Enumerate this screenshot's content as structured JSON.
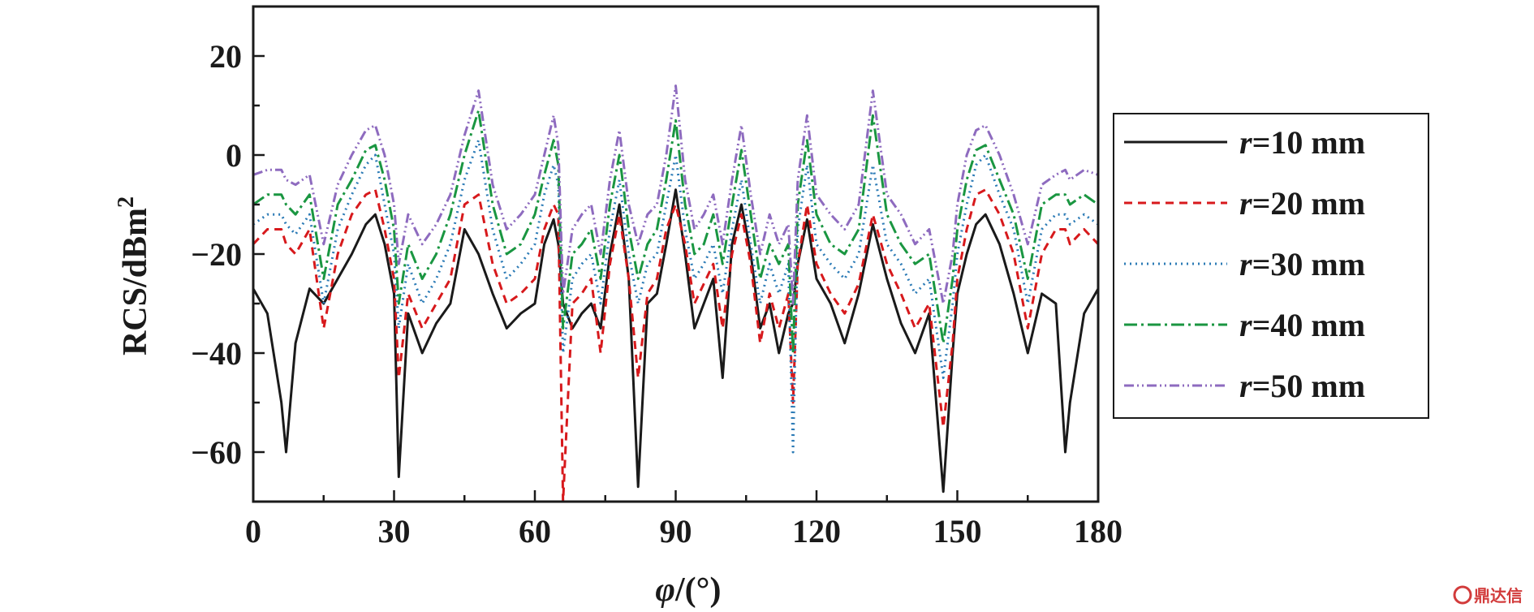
{
  "chart_data": {
    "type": "line",
    "xlabel_symbol": "φ",
    "xlabel_unit": "/(°)",
    "ylabel": "RCS/dBm",
    "ylabel_sup": "2",
    "xlim": [
      0,
      180
    ],
    "ylim": [
      -70,
      30
    ],
    "xticks": [
      0,
      30,
      60,
      90,
      120,
      150,
      180
    ],
    "yticks": [
      -60,
      -40,
      -20,
      0,
      20
    ],
    "grid": false,
    "legend_position": "right",
    "x": [
      0,
      3,
      6,
      7,
      9,
      12,
      15,
      18,
      21,
      24,
      26,
      28,
      30,
      31,
      33,
      36,
      39,
      42,
      45,
      48,
      51,
      54,
      57,
      60,
      62,
      64,
      65,
      66,
      68,
      70,
      72,
      74,
      76,
      78,
      80,
      82,
      84,
      86,
      88,
      90,
      92,
      94,
      96,
      98,
      100,
      102,
      104,
      106,
      108,
      110,
      112,
      114,
      115,
      116,
      118,
      120,
      123,
      126,
      129,
      132,
      135,
      138,
      141,
      144,
      147,
      149,
      150,
      152,
      154,
      156,
      159,
      162,
      165,
      168,
      171,
      173,
      174,
      177,
      180
    ],
    "series": [
      {
        "name": "r=10 mm",
        "color": "#1a1a1a",
        "dash": "solid",
        "values": [
          -27,
          -32,
          -50,
          -60,
          -38,
          -27,
          -30,
          -25,
          -20,
          -14,
          -12,
          -18,
          -28,
          -65,
          -32,
          -40,
          -34,
          -30,
          -15,
          -20,
          -28,
          -35,
          -32,
          -30,
          -18,
          -13,
          -18,
          -30,
          -35,
          -32,
          -30,
          -35,
          -20,
          -10,
          -25,
          -67,
          -30,
          -28,
          -18,
          -7,
          -20,
          -35,
          -30,
          -25,
          -45,
          -18,
          -10,
          -20,
          -35,
          -30,
          -40,
          -32,
          -30,
          -22,
          -13,
          -25,
          -30,
          -38,
          -28,
          -14,
          -25,
          -34,
          -40,
          -32,
          -68,
          -40,
          -28,
          -20,
          -14,
          -12,
          -18,
          -28,
          -40,
          -28,
          -30,
          -60,
          -50,
          -32,
          -27
        ]
      },
      {
        "name": "r=20 mm",
        "color": "#d7191c",
        "dash": "10,7",
        "values": [
          -18,
          -15,
          -15,
          -18,
          -20,
          -15,
          -35,
          -20,
          -12,
          -8,
          -7,
          -15,
          -25,
          -45,
          -28,
          -35,
          -30,
          -25,
          -10,
          -8,
          -22,
          -30,
          -28,
          -25,
          -15,
          -10,
          -12,
          -70,
          -30,
          -28,
          -25,
          -40,
          -22,
          -12,
          -25,
          -45,
          -28,
          -25,
          -15,
          -10,
          -18,
          -30,
          -26,
          -22,
          -35,
          -20,
          -12,
          -22,
          -38,
          -28,
          -35,
          -28,
          -50,
          -22,
          -10,
          -22,
          -28,
          -32,
          -26,
          -12,
          -22,
          -28,
          -35,
          -30,
          -55,
          -38,
          -25,
          -15,
          -8,
          -7,
          -12,
          -20,
          -35,
          -20,
          -15,
          -15,
          -18,
          -15,
          -18
        ]
      },
      {
        "name": "r=30 mm",
        "color": "#2c7bb6",
        "dash": "2,5",
        "values": [
          -14,
          -12,
          -12,
          -14,
          -16,
          -12,
          -30,
          -15,
          -8,
          -2,
          0,
          -10,
          -20,
          -35,
          -22,
          -30,
          -25,
          -18,
          -5,
          3,
          -15,
          -25,
          -22,
          -18,
          -8,
          -2,
          -6,
          -40,
          -25,
          -22,
          -20,
          -30,
          -15,
          -5,
          -20,
          -30,
          -22,
          -20,
          -10,
          0,
          -15,
          -25,
          -22,
          -18,
          -28,
          -15,
          -5,
          -18,
          -30,
          -22,
          -28,
          -22,
          -60,
          -15,
          -2,
          -18,
          -22,
          -25,
          -20,
          -2,
          -18,
          -22,
          -28,
          -25,
          -45,
          -30,
          -20,
          -10,
          -2,
          0,
          -8,
          -15,
          -30,
          -15,
          -12,
          -12,
          -14,
          -12,
          -14
        ]
      },
      {
        "name": "r=40 mm",
        "color": "#1a9641",
        "dash": "16,5,3,5",
        "values": [
          -10,
          -8,
          -8,
          -10,
          -12,
          -8,
          -25,
          -10,
          -5,
          1,
          2,
          -5,
          -15,
          -30,
          -18,
          -25,
          -20,
          -12,
          0,
          9,
          -10,
          -20,
          -18,
          -12,
          -4,
          3,
          -2,
          -35,
          -20,
          -18,
          -15,
          -25,
          -10,
          0,
          -15,
          -25,
          -18,
          -15,
          -5,
          7,
          -10,
          -20,
          -18,
          -12,
          -22,
          -10,
          1,
          -12,
          -25,
          -18,
          -22,
          -18,
          -40,
          -10,
          3,
          -12,
          -18,
          -20,
          -15,
          8,
          -12,
          -18,
          -22,
          -20,
          -38,
          -25,
          -15,
          -5,
          1,
          2,
          -5,
          -12,
          -25,
          -10,
          -8,
          -8,
          -10,
          -8,
          -10
        ]
      },
      {
        "name": "r=50 mm",
        "color": "#8e6bbf",
        "dash": "12,4,2,4,2,4",
        "values": [
          -4,
          -3,
          -3,
          -5,
          -6,
          -4,
          -18,
          -6,
          0,
          5,
          6,
          0,
          -10,
          -22,
          -12,
          -18,
          -14,
          -8,
          4,
          13,
          -6,
          -15,
          -12,
          -8,
          0,
          8,
          2,
          -28,
          -15,
          -12,
          -10,
          -20,
          -5,
          5,
          -10,
          -18,
          -12,
          -10,
          0,
          14,
          -5,
          -15,
          -12,
          -8,
          -18,
          -5,
          6,
          -8,
          -20,
          -12,
          -18,
          -14,
          -30,
          -5,
          8,
          -8,
          -12,
          -15,
          -10,
          13,
          -8,
          -12,
          -18,
          -15,
          -30,
          -20,
          -10,
          0,
          5,
          6,
          0,
          -8,
          -18,
          -6,
          -4,
          -3,
          -5,
          -3,
          -4
        ]
      }
    ]
  },
  "watermark": "鼎达信"
}
